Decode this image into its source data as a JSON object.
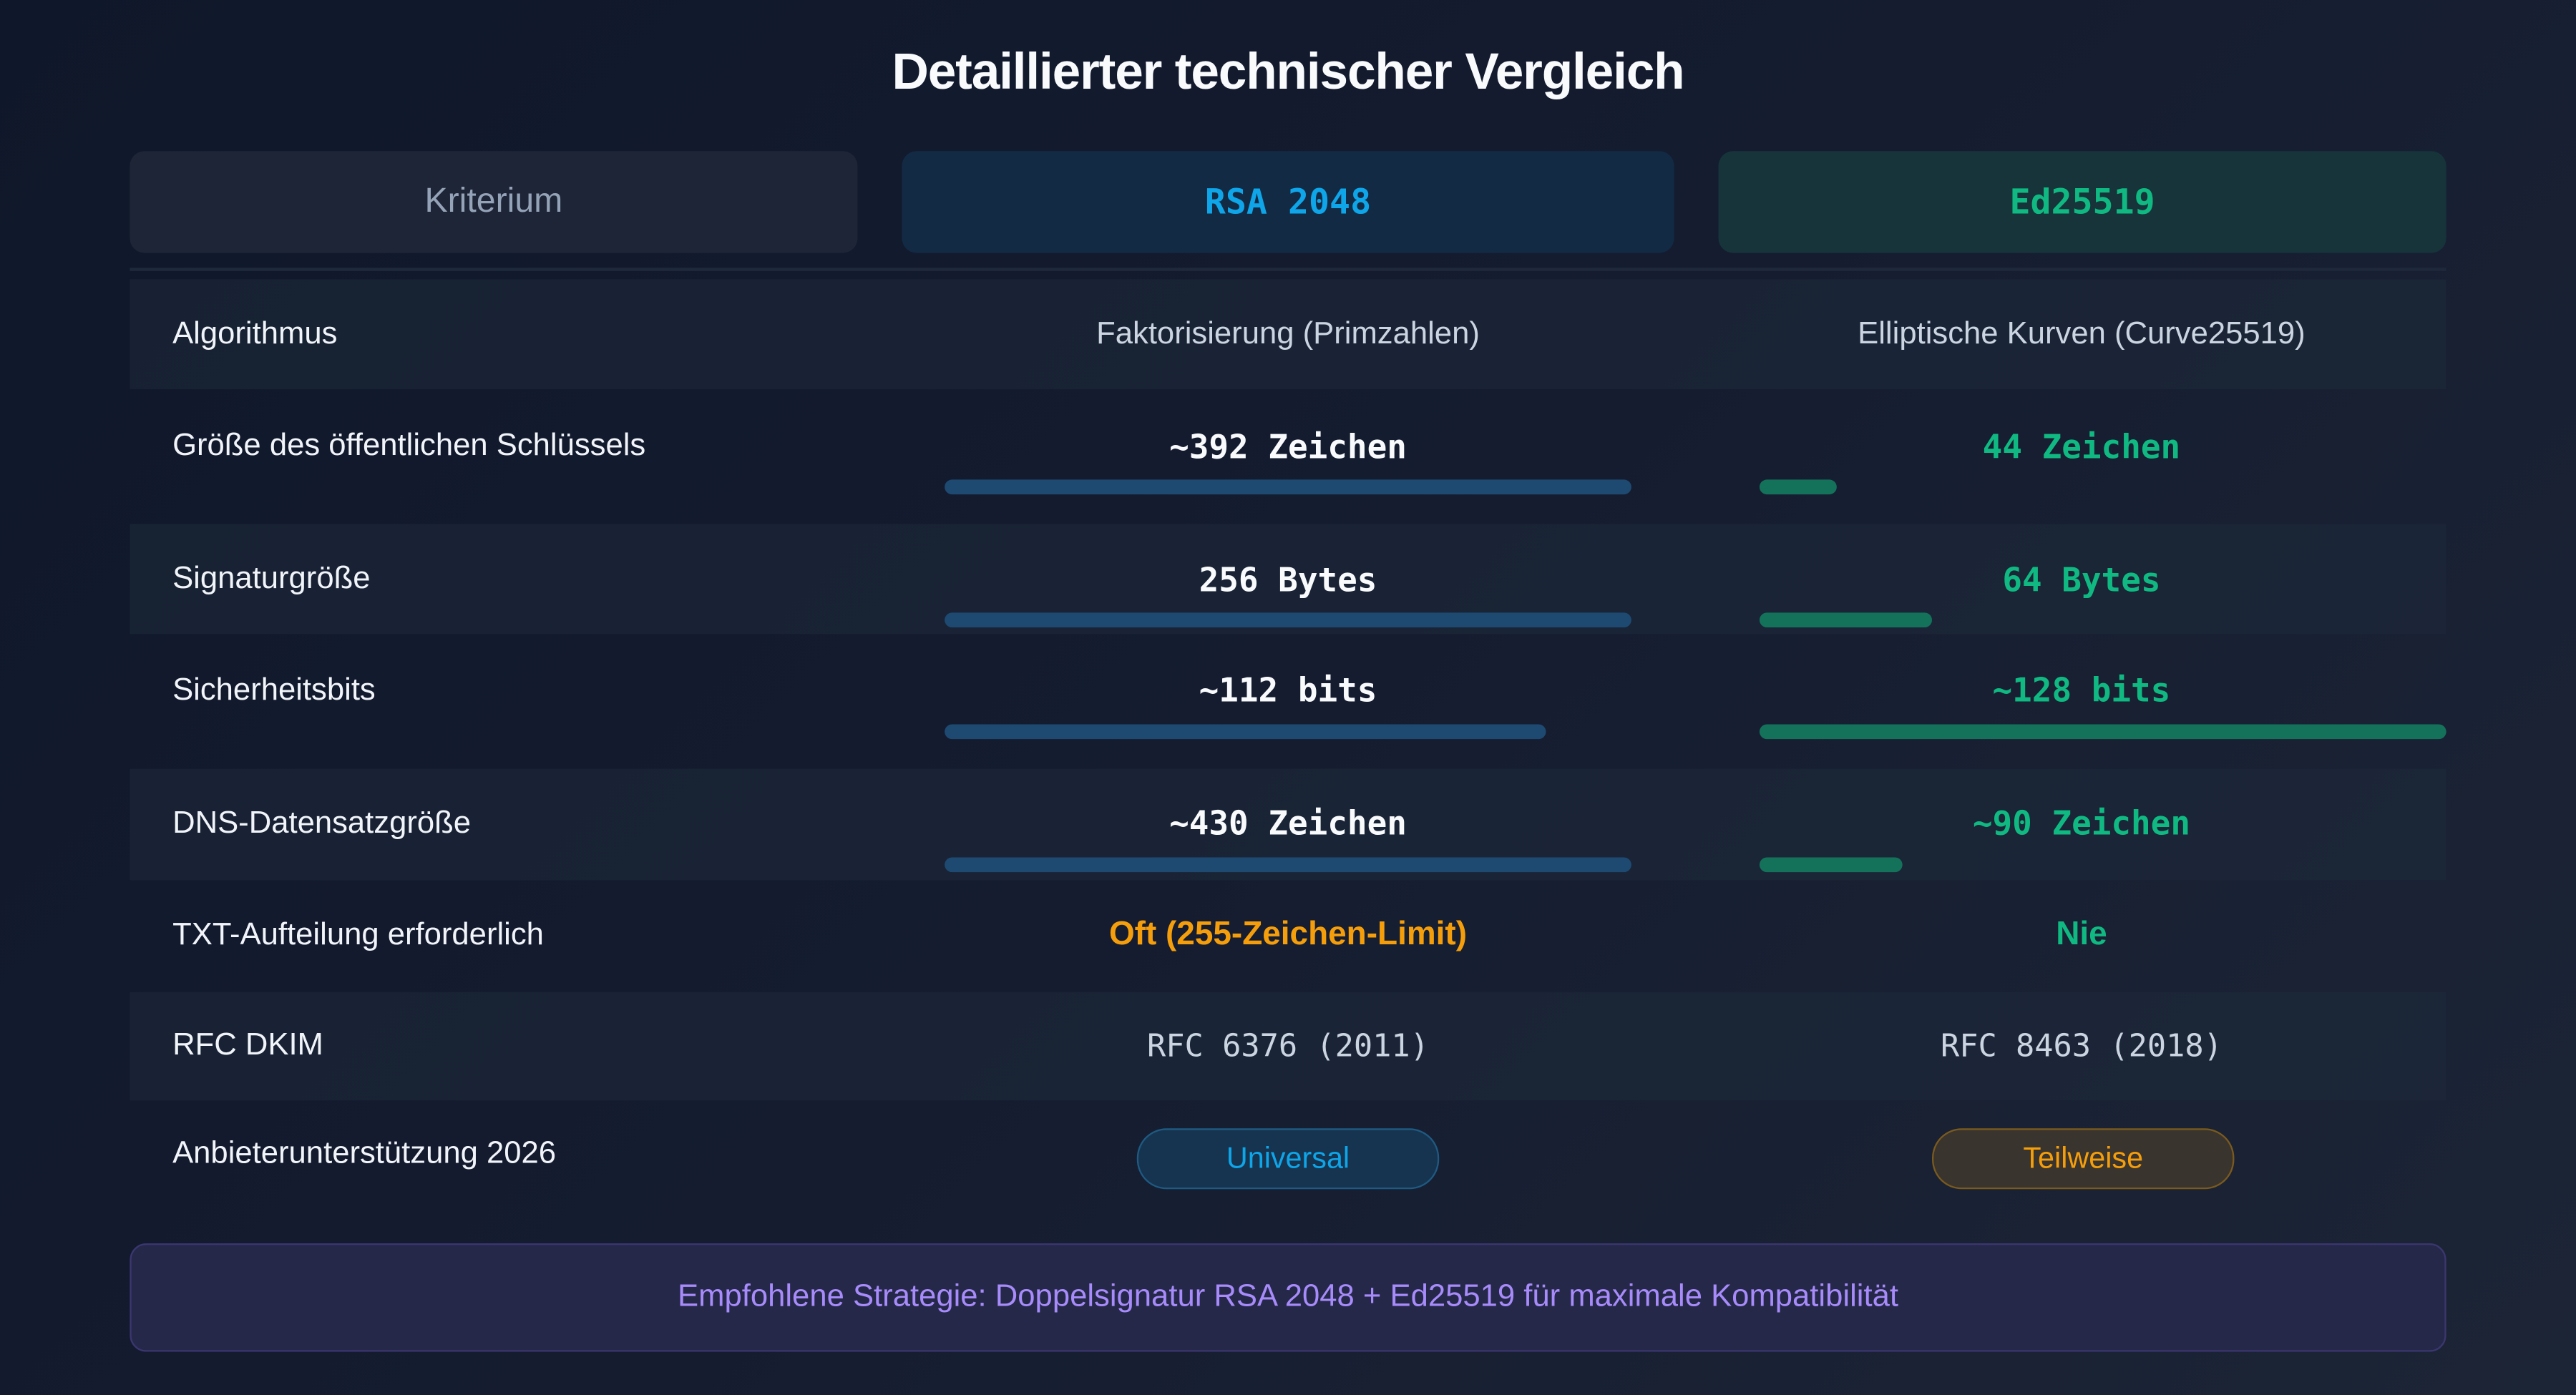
{
  "title": "Detaillierter technischer Vergleich",
  "headers": {
    "criterion": "Kriterium",
    "rsa": "RSA 2048",
    "ed": "Ed25519"
  },
  "colors": {
    "rsa_accent": "#0ea5e9",
    "ed_accent": "#10b981",
    "warning": "#f59e0b",
    "footer_text": "#a78bfa"
  },
  "rows": [
    {
      "label": "Algorithmus",
      "rsa": "Faktorisierung (Primzahlen)",
      "ed": "Elliptische Kurven (Curve25519)"
    },
    {
      "label": "Größe des öffentlichen Schlüssels",
      "rsa": "~392 Zeichen",
      "ed": "44 Zeichen",
      "rsa_bar": 1.0,
      "ed_bar": 0.112
    },
    {
      "label": "Signaturgröße",
      "rsa": "256 Bytes",
      "ed": "64 Bytes",
      "rsa_bar": 1.0,
      "ed_bar": 0.25
    },
    {
      "label": "Sicherheitsbits",
      "rsa": "~112 bits",
      "ed": "~128 bits",
      "rsa_bar": 0.875,
      "ed_bar": 1.0
    },
    {
      "label": "DNS-Datensatzgröße",
      "rsa": "~430 Zeichen",
      "ed": "~90 Zeichen",
      "rsa_bar": 1.0,
      "ed_bar": 0.209
    },
    {
      "label": "TXT-Aufteilung erforderlich",
      "rsa": "Oft (255-Zeichen-Limit)",
      "ed": "Nie"
    },
    {
      "label": "RFC DKIM",
      "rsa": "RFC 6376 (2011)",
      "ed": "RFC 8463 (2018)"
    },
    {
      "label": "Anbieterunterstützung 2026",
      "rsa": "Universal",
      "ed": "Teilweise"
    }
  ],
  "footer": "Empfohlene Strategie: Doppelsignatur RSA 2048 + Ed25519 für maximale Kompatibilität"
}
